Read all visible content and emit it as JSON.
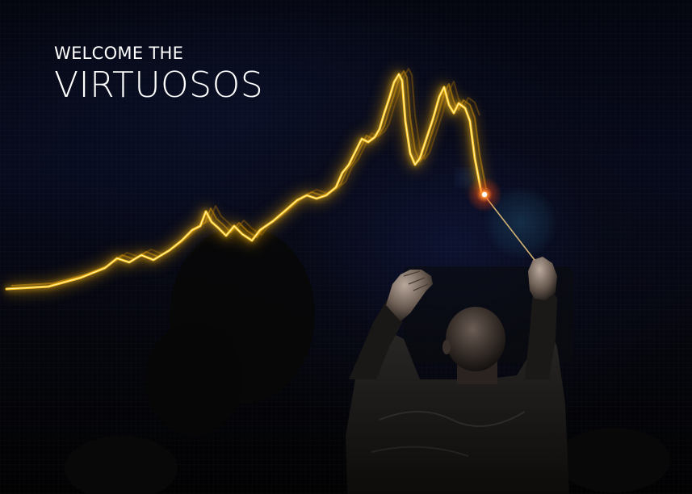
{
  "headline": {
    "line1": "WELCOME THE",
    "line2": "VIRTUOSOS"
  },
  "colors": {
    "background": "#05060c",
    "glow_line": "#ffc21a",
    "glow_core": "#fff2a8",
    "baton_tip": "#ff7a1a",
    "text": "#ffffff"
  },
  "scene": {
    "subject": "conductor-silhouette",
    "props": [
      "baton-icon",
      "glowing-stock-line",
      "lens-flare"
    ]
  }
}
